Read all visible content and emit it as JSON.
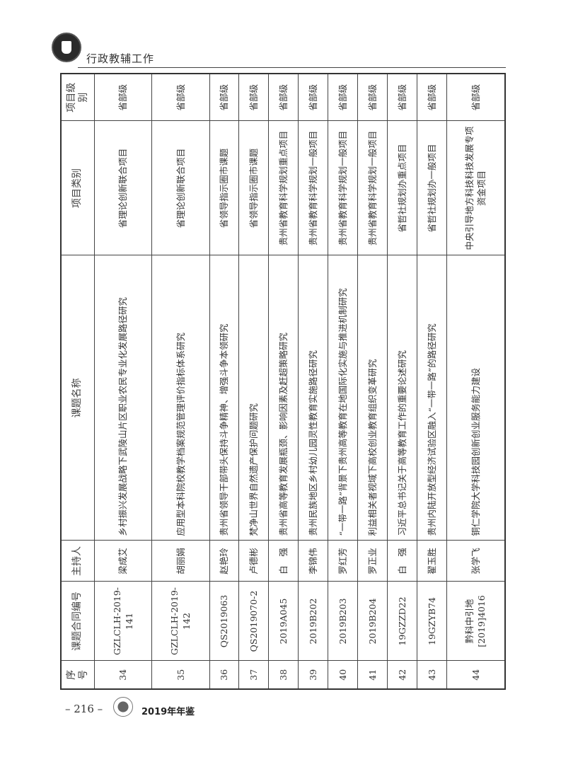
{
  "header": {
    "section_title": "行政教辅工作"
  },
  "table": {
    "columns": [
      "序号",
      "课题合同编号",
      "主持人",
      "课题名称",
      "项目类别",
      "项目级别"
    ],
    "rows": [
      [
        "34",
        "GZLCLH-2019-141",
        "梁成艾",
        "乡村振兴发展战略下武陵山片区职业农民专业化发展路径研究",
        "省理论创新联合项目",
        "省部级"
      ],
      [
        "35",
        "GZLCLH-2019-142",
        "胡丽娟",
        "应用型本科院校教学档案规范管理评价指标体系研究",
        "省理论创新联合项目",
        "省部级"
      ],
      [
        "36",
        "QS2019063",
        "赵艳玲",
        "贵州省领导干部带头保持斗争精神、增强斗争本领研究",
        "省领导指示圈市课题",
        "省部级"
      ],
      [
        "37",
        "QS2019070-2",
        "卢德彬",
        "梵净山世界自然遗产保护问题研究",
        "省领导指示圈市课题",
        "省部级"
      ],
      [
        "38",
        "2019A045",
        "白　强",
        "贵州省高等教育发展瓶颈、影响因素及赶超策略研究",
        "贵州省教育科学规划重点项目",
        "省部级"
      ],
      [
        "39",
        "2019B202",
        "李锦伟",
        "贵州民族地区乡村幼儿园灵性教育实施路径研究",
        "贵州省教育科学规划一般项目",
        "省部级"
      ],
      [
        "40",
        "2019B203",
        "罗红芳",
        "“一带一路”背景下贵州高等教育在地国际化实施与推进机制研究",
        "贵州省教育科学规划一般项目",
        "省部级"
      ],
      [
        "41",
        "2019B204",
        "罗正业",
        "利益相关者视域下高校创业教育组织变革研究",
        "贵州省教育科学规划一般项目",
        "省部级"
      ],
      [
        "42",
        "19GZZD22",
        "白　强",
        "习近平总书记关于高等教育工作的重要论述研究",
        "省哲社规划办重点项目",
        "省部级"
      ],
      [
        "43",
        "19GZYB74",
        "翟玉胜",
        "贵州内陆开放型经济试验区融入“一带一路”的路径研究",
        "省哲社规划办一般项目",
        "省部级"
      ],
      [
        "44",
        "黔科中引地[2019]4016",
        "张学飞",
        "铜仁学院大学科技园创新创业服务能力建设",
        "中央引导地方科技科技发展专项资金项目",
        "省部级"
      ]
    ]
  },
  "footer": {
    "page_number": "– 216 –",
    "book_title": "2019年年鉴"
  }
}
